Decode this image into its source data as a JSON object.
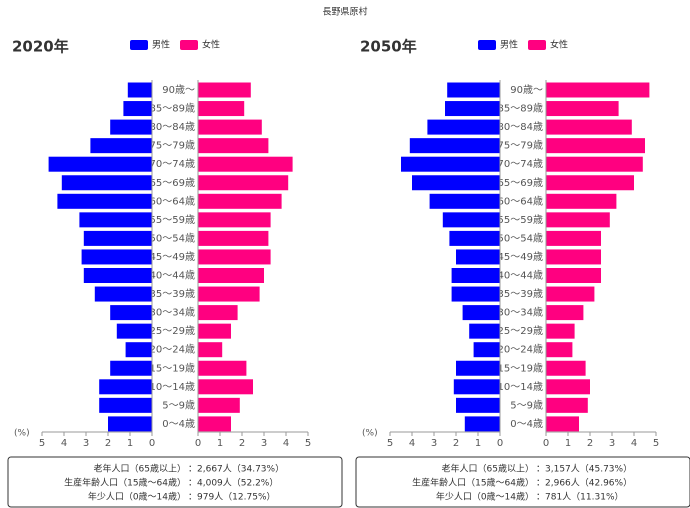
{
  "page_title": "長野県原村",
  "chart_data": [
    {
      "type": "pyramid",
      "title": "2020年",
      "unit_label": "(%)",
      "categories": [
        "90歳〜",
        "85〜89歳",
        "80〜84歳",
        "75〜79歳",
        "70〜74歳",
        "65〜69歳",
        "60〜64歳",
        "55〜59歳",
        "50〜54歳",
        "45〜49歳",
        "40〜44歳",
        "35〜39歳",
        "30〜34歳",
        "25〜29歳",
        "20〜24歳",
        "15〜19歳",
        "10〜14歳",
        "5〜9歳",
        "0〜4歳"
      ],
      "series": [
        {
          "name": "男性",
          "color": "#0000ff",
          "values": [
            1.1,
            1.3,
            1.9,
            2.8,
            4.7,
            4.1,
            4.3,
            3.3,
            3.1,
            3.2,
            3.1,
            2.6,
            1.9,
            1.6,
            1.2,
            1.9,
            2.4,
            2.4,
            2.0
          ]
        },
        {
          "name": "女性",
          "color": "#ff0080",
          "values": [
            2.4,
            2.1,
            2.9,
            3.2,
            4.3,
            4.1,
            3.8,
            3.3,
            3.2,
            3.3,
            3.0,
            2.8,
            1.8,
            1.5,
            1.1,
            2.2,
            2.5,
            1.9,
            1.5
          ]
        }
      ],
      "xlim": [
        0,
        5
      ],
      "xticks": [
        0,
        1,
        2,
        3,
        4,
        5
      ],
      "summary": [
        {
          "label": "老年人口（65歳以上）",
          "value": "：2,667人（34.73%）"
        },
        {
          "label": "生産年齢人口（15歳〜64歳）",
          "value": "：4,009人（52.2%）"
        },
        {
          "label": "年少人口（0歳〜14歳）",
          "value": "：979人（12.75%）"
        }
      ]
    },
    {
      "type": "pyramid",
      "title": "2050年",
      "unit_label": "(%)",
      "categories": [
        "90歳〜",
        "85〜89歳",
        "80〜84歳",
        "75〜79歳",
        "70〜74歳",
        "65〜69歳",
        "60〜64歳",
        "55〜59歳",
        "50〜54歳",
        "45〜49歳",
        "40〜44歳",
        "35〜39歳",
        "30〜34歳",
        "25〜29歳",
        "20〜24歳",
        "15〜19歳",
        "10〜14歳",
        "5〜9歳",
        "0〜4歳"
      ],
      "series": [
        {
          "name": "男性",
          "color": "#0000ff",
          "values": [
            2.4,
            2.5,
            3.3,
            4.1,
            4.5,
            4.0,
            3.2,
            2.6,
            2.3,
            2.0,
            2.2,
            2.2,
            1.7,
            1.4,
            1.2,
            2.0,
            2.1,
            2.0,
            1.6
          ]
        },
        {
          "name": "女性",
          "color": "#ff0080",
          "values": [
            4.7,
            3.3,
            3.9,
            4.5,
            4.4,
            4.0,
            3.2,
            2.9,
            2.5,
            2.5,
            2.5,
            2.2,
            1.7,
            1.3,
            1.2,
            1.8,
            2.0,
            1.9,
            1.5
          ]
        }
      ],
      "xlim": [
        0,
        5
      ],
      "xticks": [
        0,
        1,
        2,
        3,
        4,
        5
      ],
      "summary": [
        {
          "label": "老年人口（65歳以上）",
          "value": "：3,157人（45.73%）"
        },
        {
          "label": "生産年齢人口（15歳〜64歳）",
          "value": "：2,966人（42.96%）"
        },
        {
          "label": "年少人口（0歳〜14歳）",
          "value": "：781人（11.31%）"
        }
      ]
    }
  ]
}
